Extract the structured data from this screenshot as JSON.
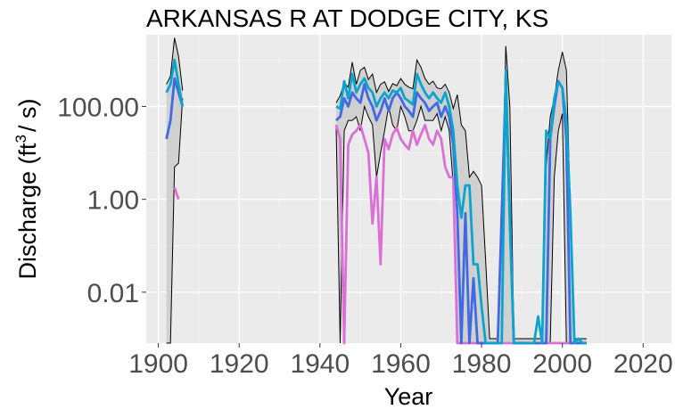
{
  "chart_data": {
    "type": "line",
    "title": "ARKANSAS R AT DODGE CITY, KS",
    "xlabel": "Year",
    "ylabel_main": "Discharge (ft",
    "ylabel_sup": "3",
    "ylabel_tail": "/ s)",
    "y_scale": "log10",
    "xlim": [
      1897,
      2027
    ],
    "ylim": [
      0.0008,
      3500
    ],
    "x_ticks": [
      1900,
      1920,
      1940,
      1960,
      1980,
      2000,
      2020
    ],
    "x_tick_labels": [
      "1900",
      "1920",
      "1940",
      "1960",
      "1980",
      "2000",
      "2020"
    ],
    "y_ticks": [
      0.01,
      1,
      100
    ],
    "y_tick_labels": [
      "0.01",
      "1.00",
      "100.00"
    ],
    "grid": true,
    "colors": {
      "panel": "#ebebeb",
      "grid_major": "#ffffff",
      "grid_minor": "#f5f5f5",
      "band": "#d0d0d0",
      "band_edge": "#000000",
      "min_series": "#da70d6",
      "median_series": "#4169e1",
      "mean_series": "#0aa4cc"
    },
    "band_upper": [
      [
        [
          1902,
          300
        ],
        [
          1903,
          450
        ],
        [
          1904,
          3000
        ],
        [
          1905,
          1200
        ],
        [
          1906,
          220
        ]
      ],
      [
        [
          1944,
          120
        ],
        [
          1945,
          170
        ],
        [
          1946,
          320
        ],
        [
          1947,
          260
        ],
        [
          1948,
          900
        ],
        [
          1949,
          300
        ],
        [
          1950,
          600
        ],
        [
          1951,
          700
        ],
        [
          1952,
          380
        ],
        [
          1953,
          500
        ],
        [
          1954,
          200
        ],
        [
          1955,
          300
        ],
        [
          1956,
          340
        ],
        [
          1957,
          210
        ],
        [
          1958,
          310
        ],
        [
          1959,
          280
        ],
        [
          1960,
          400
        ],
        [
          1961,
          300
        ],
        [
          1962,
          260
        ],
        [
          1963,
          240
        ],
        [
          1964,
          1000
        ],
        [
          1965,
          700
        ],
        [
          1966,
          400
        ],
        [
          1967,
          300
        ],
        [
          1968,
          350
        ],
        [
          1969,
          250
        ],
        [
          1970,
          240
        ],
        [
          1971,
          300
        ],
        [
          1972,
          200
        ],
        [
          1973,
          90
        ],
        [
          1974,
          180
        ],
        [
          1975,
          40
        ],
        [
          1976,
          30
        ],
        [
          1977,
          3
        ],
        [
          1978,
          4
        ],
        [
          1979,
          3
        ],
        [
          1980,
          2
        ],
        [
          1981,
          0.05
        ],
        [
          1982,
          0.001
        ],
        [
          1983,
          0.001
        ],
        [
          1984,
          0.001
        ],
        [
          1985,
          0.5
        ],
        [
          1986,
          2000
        ],
        [
          1987,
          100
        ],
        [
          1988,
          0.001
        ],
        [
          1989,
          0.001
        ],
        [
          1990,
          0.001
        ],
        [
          1991,
          0.001
        ],
        [
          1992,
          0.001
        ],
        [
          1993,
          0.001
        ],
        [
          1994,
          0.001
        ],
        [
          1995,
          0.001
        ],
        [
          1996,
          5
        ],
        [
          1997,
          60
        ],
        [
          1998,
          150
        ],
        [
          1999,
          600
        ],
        [
          2000,
          1500
        ],
        [
          2001,
          600
        ],
        [
          2002,
          0.5
        ],
        [
          2003,
          0.001
        ],
        [
          2004,
          0.001
        ],
        [
          2005,
          0.001
        ],
        [
          2006,
          0.001
        ]
      ]
    ],
    "band_lower": [
      [
        [
          1902,
          0.0008
        ],
        [
          1903,
          0.0008
        ],
        [
          1904,
          5
        ],
        [
          1905,
          6
        ],
        [
          1906,
          150
        ]
      ],
      [
        [
          1944,
          40
        ],
        [
          1945,
          0.0008
        ],
        [
          1946,
          30
        ],
        [
          1947,
          50
        ],
        [
          1948,
          50
        ],
        [
          1949,
          60
        ],
        [
          1950,
          30
        ],
        [
          1951,
          100
        ],
        [
          1952,
          60
        ],
        [
          1953,
          40
        ],
        [
          1954,
          3
        ],
        [
          1955,
          10
        ],
        [
          1956,
          30
        ],
        [
          1957,
          100
        ],
        [
          1958,
          40
        ],
        [
          1959,
          30
        ],
        [
          1960,
          100
        ],
        [
          1961,
          60
        ],
        [
          1962,
          30
        ],
        [
          1963,
          30
        ],
        [
          1964,
          50
        ],
        [
          1965,
          100
        ],
        [
          1966,
          50
        ],
        [
          1967,
          50
        ],
        [
          1968,
          50
        ],
        [
          1969,
          70
        ],
        [
          1970,
          30
        ],
        [
          1971,
          60
        ],
        [
          1972,
          30
        ],
        [
          1973,
          2
        ],
        [
          1974,
          0.0008
        ],
        [
          1975,
          0.0008
        ],
        [
          1976,
          0.0008
        ],
        [
          1977,
          0.0008
        ],
        [
          1978,
          0.0008
        ],
        [
          1979,
          0.0008
        ],
        [
          1980,
          0.0008
        ],
        [
          1981,
          0.0008
        ],
        [
          1982,
          0.0008
        ],
        [
          1983,
          0.0008
        ],
        [
          1984,
          0.0008
        ],
        [
          1985,
          0.0008
        ],
        [
          1986,
          0.0008
        ],
        [
          1987,
          0.0008
        ],
        [
          1988,
          0.0008
        ],
        [
          1989,
          0.0008
        ],
        [
          1990,
          0.0008
        ],
        [
          1991,
          0.0008
        ],
        [
          1992,
          0.0008
        ],
        [
          1993,
          0.0008
        ],
        [
          1994,
          0.0008
        ],
        [
          1995,
          0.0008
        ],
        [
          1996,
          0.0008
        ],
        [
          1997,
          0.0008
        ],
        [
          1998,
          3
        ],
        [
          1999,
          30
        ],
        [
          2000,
          70
        ],
        [
          2001,
          0.0008
        ],
        [
          2002,
          0.0008
        ],
        [
          2003,
          0.0008
        ],
        [
          2004,
          0.0008
        ],
        [
          2005,
          0.0008
        ],
        [
          2006,
          0.0008
        ]
      ]
    ],
    "series": [
      {
        "role": "min",
        "segments": [
          [
            [
              1904,
              1.8
            ],
            [
              1905,
              1.0
            ]
          ],
          [
            [
              1944,
              40
            ],
            [
              1945,
              20
            ],
            [
              1946,
              0.0008
            ],
            [
              1947,
              15
            ],
            [
              1948,
              25
            ],
            [
              1949,
              30
            ],
            [
              1950,
              40
            ],
            [
              1951,
              20
            ],
            [
              1952,
              10
            ],
            [
              1953,
              0.3
            ],
            [
              1954,
              3
            ],
            [
              1955,
              0.04
            ],
            [
              1956,
              20
            ],
            [
              1957,
              12
            ],
            [
              1958,
              25
            ],
            [
              1959,
              35
            ],
            [
              1960,
              20
            ],
            [
              1961,
              15
            ],
            [
              1962,
              12
            ],
            [
              1963,
              30
            ],
            [
              1964,
              15
            ],
            [
              1965,
              25
            ],
            [
              1966,
              40
            ],
            [
              1967,
              20
            ],
            [
              1968,
              15
            ],
            [
              1969,
              30
            ],
            [
              1970,
              20
            ],
            [
              1971,
              5
            ],
            [
              1972,
              3
            ],
            [
              1973,
              3
            ],
            [
              1974,
              0.0008
            ],
            [
              1975,
              0.0008
            ],
            [
              1980,
              0.0008
            ],
            [
              1990,
              0.0008
            ],
            [
              2000,
              0.0008
            ],
            [
              2006,
              0.0008
            ]
          ]
        ]
      },
      {
        "role": "median",
        "segments": [
          [
            [
              1902,
              20
            ],
            [
              1903,
              50
            ],
            [
              1904,
              400
            ],
            [
              1905,
              200
            ],
            [
              1906,
              100
            ]
          ],
          [
            [
              1944,
              50
            ],
            [
              1945,
              60
            ],
            [
              1946,
              150
            ],
            [
              1947,
              100
            ],
            [
              1948,
              200
            ],
            [
              1949,
              150
            ],
            [
              1950,
              120
            ],
            [
              1951,
              300
            ],
            [
              1952,
              150
            ],
            [
              1953,
              100
            ],
            [
              1954,
              50
            ],
            [
              1955,
              80
            ],
            [
              1956,
              150
            ],
            [
              1957,
              80
            ],
            [
              1958,
              150
            ],
            [
              1959,
              200
            ],
            [
              1960,
              150
            ],
            [
              1961,
              100
            ],
            [
              1962,
              80
            ],
            [
              1963,
              60
            ],
            [
              1964,
              200
            ],
            [
              1965,
              150
            ],
            [
              1966,
              120
            ],
            [
              1967,
              80
            ],
            [
              1968,
              100
            ],
            [
              1969,
              120
            ],
            [
              1970,
              60
            ],
            [
              1971,
              100
            ],
            [
              1972,
              60
            ],
            [
              1973,
              15
            ],
            [
              1974,
              0.5
            ],
            [
              1975,
              0.0008
            ],
            [
              1976,
              0.5
            ],
            [
              1977,
              0.0008
            ],
            [
              1978,
              0.02
            ],
            [
              1979,
              0.0008
            ],
            [
              1980,
              0.0008
            ],
            [
              1981,
              0.0008
            ],
            [
              1982,
              0.0008
            ],
            [
              1983,
              0.0008
            ],
            [
              1984,
              0.0008
            ],
            [
              1985,
              0.5
            ],
            [
              1986,
              300
            ],
            [
              1987,
              0.5
            ],
            [
              1988,
              0.0008
            ],
            [
              1995,
              0.0008
            ],
            [
              1996,
              0.0008
            ],
            [
              1997,
              20
            ],
            [
              1998,
              100
            ],
            [
              1999,
              350
            ],
            [
              2000,
              250
            ],
            [
              2001,
              20
            ],
            [
              2002,
              0.0008
            ],
            [
              2006,
              0.0008
            ]
          ]
        ]
      },
      {
        "role": "mean",
        "segments": [
          [
            [
              1902,
              200
            ],
            [
              1903,
              300
            ],
            [
              1904,
              1000
            ],
            [
              1905,
              300
            ],
            [
              1906,
              100
            ]
          ],
          [
            [
              1944,
              100
            ],
            [
              1945,
              90
            ],
            [
              1946,
              350
            ],
            [
              1947,
              150
            ],
            [
              1948,
              500
            ],
            [
              1949,
              200
            ],
            [
              1950,
              300
            ],
            [
              1951,
              400
            ],
            [
              1952,
              250
            ],
            [
              1953,
              200
            ],
            [
              1954,
              100
            ],
            [
              1955,
              150
            ],
            [
              1956,
              200
            ],
            [
              1957,
              150
            ],
            [
              1958,
              220
            ],
            [
              1959,
              200
            ],
            [
              1960,
              250
            ],
            [
              1961,
              150
            ],
            [
              1962,
              130
            ],
            [
              1963,
              110
            ],
            [
              1964,
              500
            ],
            [
              1965,
              300
            ],
            [
              1966,
              200
            ],
            [
              1967,
              150
            ],
            [
              1968,
              200
            ],
            [
              1969,
              150
            ],
            [
              1970,
              120
            ],
            [
              1971,
              200
            ],
            [
              1972,
              100
            ],
            [
              1973,
              30
            ],
            [
              1974,
              2
            ],
            [
              1975,
              0.4
            ],
            [
              1976,
              2
            ],
            [
              1977,
              2
            ],
            [
              1978,
              0.04
            ],
            [
              1979,
              0.04
            ],
            [
              1980,
              0.005
            ],
            [
              1981,
              0.0008
            ],
            [
              1982,
              0.0008
            ],
            [
              1983,
              0.0008
            ],
            [
              1984,
              0.0008
            ],
            [
              1985,
              0.0008
            ],
            [
              1986,
              600
            ],
            [
              1987,
              0.3
            ],
            [
              1988,
              0.0008
            ],
            [
              1993,
              0.0008
            ],
            [
              1994,
              0.003
            ],
            [
              1995,
              0.0008
            ],
            [
              1996,
              30
            ],
            [
              1997,
              20
            ],
            [
              1998,
              150
            ],
            [
              1999,
              350
            ],
            [
              2000,
              250
            ],
            [
              2001,
              50
            ],
            [
              2002,
              0.5
            ],
            [
              2003,
              0.0008
            ],
            [
              2004,
              0.001
            ],
            [
              2005,
              0.0008
            ],
            [
              2006,
              0.0008
            ]
          ]
        ]
      }
    ]
  }
}
